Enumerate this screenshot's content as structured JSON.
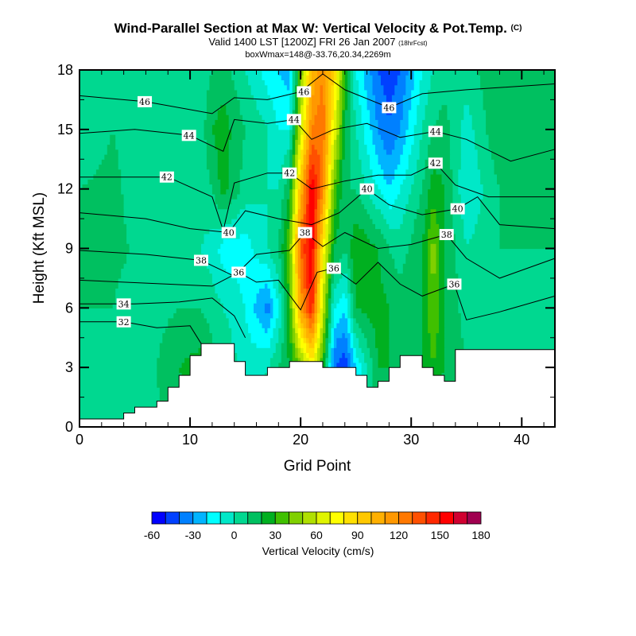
{
  "chart_data": {
    "type": "heatmap",
    "title": "Wind-Parallel Section at Max W: Vertical Velocity & Pot.Temp.",
    "title_mark": "(C)",
    "subtitle": "Valid 1400 LST [1200Z] FRI 26 Jan 2007",
    "subtitle_note": "(18hrFcst)",
    "subtitle2": "boxWmax=148@-33.76,20.34,2269m",
    "xlabel": "Grid Point",
    "ylabel": "Height (Kft MSL)",
    "xlim": [
      0,
      43
    ],
    "ylim": [
      0,
      18
    ],
    "x_ticks": [
      "0",
      "10",
      "20",
      "30",
      "40"
    ],
    "y_ticks": [
      "0",
      "3",
      "6",
      "9",
      "12",
      "15",
      "18"
    ],
    "colorbar": {
      "label": "Vertical Velocity (cm/s)",
      "min": -60,
      "max": 180,
      "step": 10,
      "tick_labels": [
        "-60",
        "-30",
        "0",
        "30",
        "60",
        "90",
        "120",
        "150",
        "180"
      ],
      "colors": [
        "#0000ff",
        "#0040ff",
        "#0080ff",
        "#00b4ff",
        "#00ffff",
        "#00e8c8",
        "#00d890",
        "#00c060",
        "#00b020",
        "#40c000",
        "#80d000",
        "#b0e000",
        "#e0f400",
        "#ffff00",
        "#ffe000",
        "#ffc800",
        "#ffb000",
        "#ff9800",
        "#ff7800",
        "#ff5000",
        "#ff2800",
        "#ff0000",
        "#d00030",
        "#a00050"
      ]
    },
    "w_field": {
      "units": "cm/s",
      "x": [
        0,
        3,
        6,
        9,
        11,
        12,
        13,
        15,
        17,
        18,
        19,
        20,
        21,
        22,
        23,
        24,
        25,
        27,
        28,
        29,
        31,
        32,
        33,
        35,
        38,
        40,
        43
      ],
      "heights_kft": [
        0,
        3,
        6,
        9,
        12,
        15,
        18
      ],
      "values": [
        [
          0,
          5,
          10,
          10,
          10,
          5,
          5
        ],
        [
          5,
          5,
          10,
          12,
          12,
          10,
          5
        ],
        [
          5,
          5,
          5,
          8,
          5,
          5,
          5
        ],
        [
          15,
          20,
          10,
          5,
          5,
          5,
          5
        ],
        [
          25,
          25,
          10,
          0,
          5,
          5,
          5
        ],
        [
          20,
          15,
          5,
          -5,
          10,
          20,
          10
        ],
        [
          10,
          10,
          0,
          -15,
          25,
          25,
          15
        ],
        [
          5,
          -5,
          -10,
          -15,
          5,
          10,
          0
        ],
        [
          5,
          0,
          -35,
          0,
          0,
          0,
          -15
        ],
        [
          5,
          10,
          -10,
          10,
          0,
          -10,
          -20
        ],
        [
          10,
          20,
          30,
          40,
          20,
          -10,
          -25
        ],
        [
          20,
          40,
          110,
          130,
          100,
          60,
          40
        ],
        [
          30,
          70,
          150,
          160,
          160,
          120,
          100
        ],
        [
          10,
          30,
          60,
          80,
          120,
          130,
          120
        ],
        [
          -20,
          -40,
          -10,
          20,
          40,
          70,
          90
        ],
        [
          -20,
          -50,
          -20,
          10,
          10,
          20,
          30
        ],
        [
          -10,
          -20,
          20,
          30,
          10,
          0,
          -10
        ],
        [
          10,
          20,
          25,
          20,
          -10,
          -30,
          -40
        ],
        [
          15,
          20,
          20,
          10,
          -20,
          -40,
          -45
        ],
        [
          10,
          15,
          15,
          5,
          -10,
          -30,
          -40
        ],
        [
          10,
          20,
          20,
          20,
          10,
          0,
          -10
        ],
        [
          15,
          30,
          40,
          45,
          25,
          10,
          0
        ],
        [
          10,
          20,
          20,
          20,
          20,
          15,
          5
        ],
        [
          5,
          10,
          5,
          0,
          -10,
          -5,
          5
        ],
        [
          5,
          10,
          10,
          10,
          10,
          20,
          20
        ],
        [
          5,
          10,
          5,
          10,
          15,
          20,
          15
        ],
        [
          5,
          5,
          5,
          10,
          10,
          10,
          10
        ]
      ]
    },
    "terrain_kft": [
      0.4,
      0.4,
      0.4,
      0.4,
      0.7,
      1.0,
      1.0,
      1.3,
      2.0,
      2.6,
      3.6,
      4.2,
      4.2,
      4.2,
      3.3,
      2.6,
      2.6,
      3.0,
      3.0,
      3.3,
      3.3,
      3.3,
      3.0,
      3.0,
      3.0,
      2.6,
      2.0,
      2.3,
      3.0,
      3.6,
      3.6,
      3.0,
      2.6,
      2.3,
      3.9,
      3.9,
      3.9,
      3.9,
      3.9,
      3.9,
      3.9,
      3.9,
      3.9
    ],
    "theta_contours": [
      {
        "label": "46",
        "points": [
          [
            0,
            16.7
          ],
          [
            6,
            16.4
          ],
          [
            12,
            15.8
          ],
          [
            14,
            16.6
          ],
          [
            17,
            16.5
          ],
          [
            20,
            16.9
          ],
          [
            22,
            17.8
          ],
          [
            24,
            17.0
          ],
          [
            28,
            16.1
          ],
          [
            31,
            16.8
          ],
          [
            35,
            17.0
          ],
          [
            43,
            17.3
          ]
        ],
        "labels": [
          [
            5.9,
            16.4
          ],
          [
            20.3,
            16.9
          ],
          [
            28,
            16.1
          ]
        ]
      },
      {
        "label": "44",
        "points": [
          [
            0,
            14.8
          ],
          [
            5,
            15.0
          ],
          [
            10,
            14.7
          ],
          [
            13,
            13.9
          ],
          [
            14,
            15.5
          ],
          [
            17,
            15.3
          ],
          [
            19.4,
            15.5
          ],
          [
            21,
            14.5
          ],
          [
            23,
            15.0
          ],
          [
            26,
            15.3
          ],
          [
            29,
            14.6
          ],
          [
            32.2,
            14.9
          ],
          [
            35,
            14.5
          ],
          [
            39,
            13.4
          ],
          [
            43,
            14.0
          ]
        ],
        "labels": [
          [
            9.9,
            14.7
          ],
          [
            19.4,
            15.5
          ],
          [
            32.2,
            14.9
          ]
        ]
      },
      {
        "label": "42",
        "points": [
          [
            0,
            12.6
          ],
          [
            8,
            12.6
          ],
          [
            12,
            11.6
          ],
          [
            13,
            9.9
          ],
          [
            14,
            12.3
          ],
          [
            17,
            12.8
          ],
          [
            19,
            12.8
          ],
          [
            21,
            12.0
          ],
          [
            24,
            12.4
          ],
          [
            27,
            12.7
          ],
          [
            30,
            12.7
          ],
          [
            32.2,
            13.3
          ],
          [
            34,
            12.2
          ],
          [
            37,
            11.6
          ],
          [
            43,
            11.6
          ]
        ],
        "labels": [
          [
            7.9,
            12.6
          ],
          [
            19,
            12.8
          ],
          [
            32.2,
            13.3
          ]
        ]
      },
      {
        "label": "40",
        "points": [
          [
            0,
            10.8
          ],
          [
            6,
            10.5
          ],
          [
            10,
            10.0
          ],
          [
            13.5,
            9.8
          ],
          [
            15,
            10.9
          ],
          [
            18,
            10.5
          ],
          [
            21,
            10.2
          ],
          [
            23.5,
            10.8
          ],
          [
            26,
            12.0
          ],
          [
            28,
            11.2
          ],
          [
            31,
            10.7
          ],
          [
            34.2,
            11.0
          ],
          [
            36,
            11.6
          ],
          [
            38,
            10.2
          ],
          [
            43,
            10.0
          ]
        ],
        "labels": [
          [
            13.5,
            9.8
          ],
          [
            26,
            12.0
          ],
          [
            34.2,
            11.0
          ]
        ]
      },
      {
        "label": "38",
        "points": [
          [
            0,
            8.9
          ],
          [
            6,
            8.7
          ],
          [
            11,
            8.4
          ],
          [
            14,
            7.6
          ],
          [
            16,
            8.7
          ],
          [
            19,
            8.9
          ],
          [
            20.4,
            9.8
          ],
          [
            22,
            9.1
          ],
          [
            24,
            9.8
          ],
          [
            27,
            9.0
          ],
          [
            30,
            9.2
          ],
          [
            33.2,
            9.7
          ],
          [
            35,
            8.5
          ],
          [
            38,
            7.5
          ],
          [
            43,
            8.5
          ]
        ],
        "labels": [
          [
            11,
            8.4
          ],
          [
            20.4,
            9.8
          ],
          [
            33.2,
            9.7
          ]
        ]
      },
      {
        "label": "36",
        "points": [
          [
            0,
            7.4
          ],
          [
            8,
            7.2
          ],
          [
            12,
            7.1
          ],
          [
            14.4,
            7.8
          ],
          [
            16,
            7.3
          ],
          [
            18,
            7.4
          ],
          [
            20,
            5.9
          ],
          [
            21.5,
            7.8
          ],
          [
            23,
            8.0
          ],
          [
            25,
            7.2
          ],
          [
            27,
            8.3
          ],
          [
            29,
            7.2
          ],
          [
            31,
            6.6
          ],
          [
            33.9,
            7.2
          ],
          [
            35,
            5.4
          ],
          [
            38,
            5.8
          ],
          [
            43,
            6.6
          ]
        ],
        "labels": [
          [
            14.4,
            7.8
          ],
          [
            23,
            8.0
          ],
          [
            33.9,
            7.2
          ]
        ]
      },
      {
        "label": "34",
        "points": [
          [
            0,
            6.2
          ],
          [
            5,
            6.2
          ],
          [
            9,
            6.3
          ],
          [
            12,
            6.5
          ],
          [
            14,
            5.6
          ],
          [
            15,
            4.5
          ]
        ],
        "labels": [
          [
            4,
            6.2
          ]
        ]
      },
      {
        "label": "32",
        "points": [
          [
            0,
            5.3
          ],
          [
            4,
            5.3
          ],
          [
            7,
            5.0
          ],
          [
            10,
            5.1
          ],
          [
            11,
            4.2
          ]
        ],
        "labels": [
          [
            4,
            5.3
          ]
        ]
      }
    ]
  }
}
